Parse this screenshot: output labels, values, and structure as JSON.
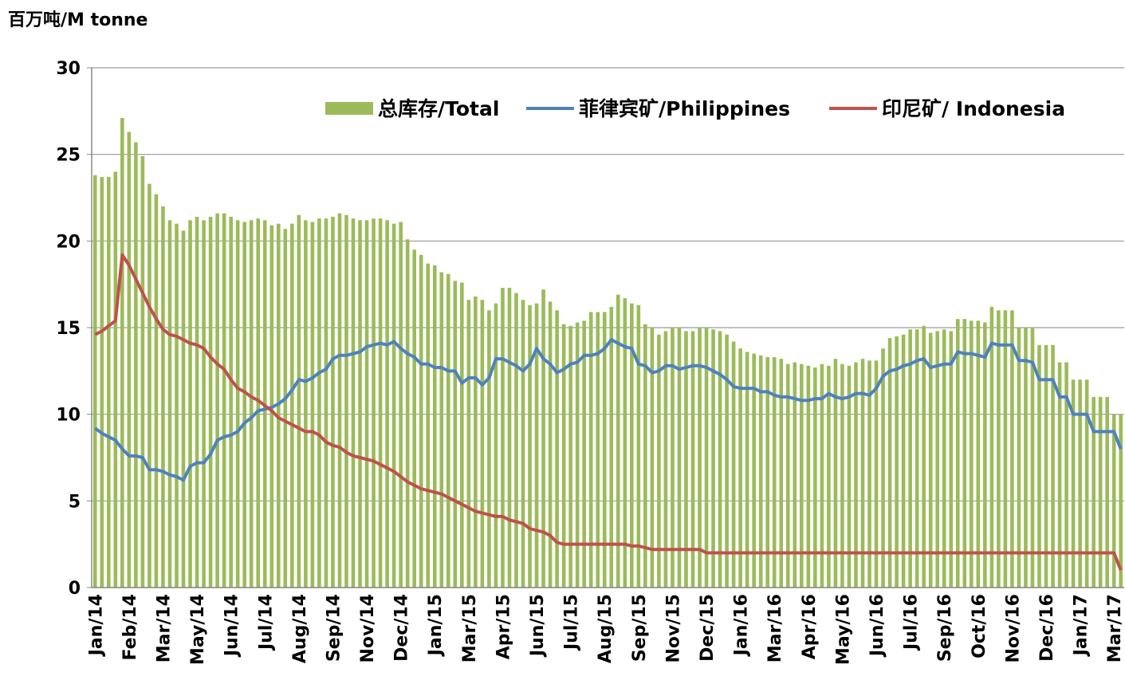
{
  "chart_data": {
    "type": "bar_line",
    "y_label": "百万吨/M tonne",
    "categories": [
      "Jan/14",
      null,
      null,
      null,
      null,
      "Feb/14",
      null,
      null,
      null,
      null,
      "Mar/14",
      null,
      null,
      null,
      null,
      "May/14",
      null,
      null,
      null,
      null,
      "Jun/14",
      null,
      null,
      null,
      null,
      "Jul/14",
      null,
      null,
      null,
      null,
      "Aug/14",
      null,
      null,
      null,
      null,
      "Sep/14",
      null,
      null,
      null,
      null,
      "Nov/14",
      null,
      null,
      null,
      null,
      "Dec/14",
      null,
      null,
      null,
      null,
      "Jan/15",
      null,
      null,
      null,
      null,
      "Mar/15",
      null,
      null,
      null,
      null,
      "Apr/15",
      null,
      null,
      null,
      null,
      "Jun/15",
      null,
      null,
      null,
      null,
      "Jul/15",
      null,
      null,
      null,
      null,
      "Aug/15",
      null,
      null,
      null,
      null,
      "Sep/15",
      null,
      null,
      null,
      null,
      "Nov/15",
      null,
      null,
      null,
      null,
      "Dec/15",
      null,
      null,
      null,
      null,
      "Jan/16",
      null,
      null,
      null,
      null,
      "Mar/16",
      null,
      null,
      null,
      null,
      "Apr/16",
      null,
      null,
      null,
      null,
      "May/16",
      null,
      null,
      null,
      null,
      "Jun/16",
      null,
      null,
      null,
      null,
      "Jul/16",
      null,
      null,
      null,
      null,
      "Sep/16",
      null,
      null,
      null,
      null,
      "Oct/16",
      null,
      null,
      null,
      null,
      "Nov/16",
      null,
      null,
      null,
      null,
      "Dec/16",
      null,
      null,
      null,
      null,
      "Jan/17",
      null,
      null,
      null,
      null,
      "Mar/17",
      null
    ],
    "series": [
      {
        "name": "总库存/Total",
        "kind": "bar",
        "color": "#9bbb59",
        "values": [
          23.8,
          23.7,
          23.7,
          24.0,
          27.1,
          26.3,
          25.7,
          24.9,
          23.3,
          22.7,
          22.0,
          21.2,
          21.0,
          20.6,
          21.2,
          21.4,
          21.2,
          21.4,
          21.6,
          21.6,
          21.4,
          21.2,
          21.1,
          21.2,
          21.3,
          21.2,
          20.9,
          21.0,
          20.7,
          21.0,
          21.5,
          21.2,
          21.1,
          21.3,
          21.3,
          21.4,
          21.6,
          21.5,
          21.3,
          21.2,
          21.2,
          21.3,
          21.3,
          21.2,
          21.0,
          21.1,
          20.1,
          19.5,
          19.2,
          18.7,
          18.6,
          18.2,
          18.1,
          17.7,
          17.6,
          16.6,
          16.8,
          16.6,
          16.0,
          16.4,
          17.3,
          17.3,
          17.0,
          16.6,
          16.3,
          16.4,
          17.2,
          16.5,
          16.0,
          15.2,
          15.1,
          15.3,
          15.4,
          15.9,
          15.9,
          15.9,
          16.2,
          16.9,
          16.7,
          16.4,
          16.3,
          15.2,
          15.0,
          14.6,
          14.8,
          15.0,
          15.0,
          14.8,
          14.8,
          15.0,
          15.0,
          14.9,
          14.8,
          14.6,
          14.2,
          13.8,
          13.6,
          13.5,
          13.4,
          13.3,
          13.3,
          13.2,
          12.9,
          13.0,
          12.9,
          12.8,
          12.7,
          12.9,
          12.8,
          13.2,
          12.9,
          12.8,
          13.0,
          13.2,
          13.1,
          13.1,
          13.8,
          14.4,
          14.5,
          14.6,
          14.9,
          14.9,
          15.1,
          14.7,
          14.8,
          14.9,
          14.8,
          15.5,
          15.5,
          15.4,
          15.4,
          15.3,
          16.2,
          16.0,
          16.0,
          16.0,
          15.0,
          15.0,
          15.0,
          14.0,
          14.0,
          14.0,
          13.0,
          13.0,
          12.0,
          12.0,
          12.0,
          11.0,
          11.0,
          11.0,
          10.0,
          10.0
        ]
      },
      {
        "name": "菲律宾矿/Philippines",
        "kind": "line",
        "color": "#4f81bd",
        "values": [
          9.2,
          8.9,
          8.7,
          8.5,
          8.0,
          7.6,
          7.6,
          7.5,
          6.8,
          6.8,
          6.7,
          6.5,
          6.4,
          6.2,
          7.0,
          7.2,
          7.2,
          7.7,
          8.5,
          8.7,
          8.8,
          9.0,
          9.5,
          9.8,
          10.2,
          10.3,
          10.4,
          10.6,
          10.9,
          11.4,
          12.0,
          11.9,
          12.1,
          12.4,
          12.6,
          13.2,
          13.4,
          13.4,
          13.5,
          13.6,
          13.9,
          14.0,
          14.1,
          14.0,
          14.2,
          13.8,
          13.5,
          13.3,
          12.9,
          12.9,
          12.7,
          12.7,
          12.5,
          12.5,
          11.8,
          12.1,
          12.1,
          11.7,
          12.1,
          13.2,
          13.2,
          13.0,
          12.8,
          12.5,
          12.9,
          13.8,
          13.2,
          12.9,
          12.4,
          12.6,
          12.9,
          13.0,
          13.4,
          13.4,
          13.5,
          13.8,
          14.3,
          14.1,
          13.9,
          13.8,
          12.9,
          12.8,
          12.4,
          12.5,
          12.8,
          12.8,
          12.6,
          12.7,
          12.8,
          12.8,
          12.7,
          12.5,
          12.3,
          12.0,
          11.6,
          11.5,
          11.5,
          11.5,
          11.3,
          11.3,
          11.1,
          11.0,
          11.0,
          10.9,
          10.8,
          10.8,
          10.9,
          10.9,
          11.2,
          11.0,
          10.9,
          11.0,
          11.2,
          11.2,
          11.1,
          11.5,
          12.2,
          12.5,
          12.6,
          12.8,
          12.9,
          13.1,
          13.2,
          12.7,
          12.8,
          12.9,
          12.9,
          13.6,
          13.5,
          13.5,
          13.4,
          13.3,
          14.1,
          14.0,
          14.0,
          14.0,
          13.1,
          13.1,
          13.0,
          12.0,
          12.0,
          12.0,
          11.0,
          11.0,
          10.0,
          10.0,
          10.0,
          9.0,
          9.0,
          9.0,
          9.0,
          8.0
        ]
      },
      {
        "name": "印尼矿/ Indonesia",
        "kind": "line",
        "color": "#c0504d",
        "values": [
          14.6,
          14.8,
          15.1,
          15.4,
          19.2,
          18.6,
          17.8,
          17.0,
          16.2,
          15.5,
          14.9,
          14.6,
          14.5,
          14.3,
          14.1,
          14.0,
          13.8,
          13.3,
          12.9,
          12.6,
          12.0,
          11.5,
          11.3,
          11.0,
          10.8,
          10.5,
          10.2,
          9.8,
          9.6,
          9.4,
          9.2,
          9.0,
          9.0,
          8.8,
          8.4,
          8.2,
          8.1,
          7.8,
          7.6,
          7.5,
          7.4,
          7.3,
          7.1,
          6.9,
          6.7,
          6.4,
          6.1,
          5.9,
          5.7,
          5.6,
          5.5,
          5.4,
          5.2,
          5.0,
          4.8,
          4.6,
          4.4,
          4.3,
          4.2,
          4.1,
          4.1,
          3.9,
          3.8,
          3.7,
          3.4,
          3.3,
          3.2,
          3.0,
          2.6,
          2.5,
          2.5,
          2.5,
          2.5,
          2.5,
          2.5,
          2.5,
          2.5,
          2.5,
          2.5,
          2.4,
          2.4,
          2.3,
          2.2,
          2.2,
          2.2,
          2.2,
          2.2,
          2.2,
          2.2,
          2.2,
          2.0,
          2.0,
          2.0,
          2.0,
          2.0,
          2.0,
          2.0,
          2.0,
          2.0,
          2.0,
          2.0,
          2.0,
          2.0,
          2.0,
          2.0,
          2.0,
          2.0,
          2.0,
          2.0,
          2.0,
          2.0,
          2.0,
          2.0,
          2.0,
          2.0,
          2.0,
          2.0,
          2.0,
          2.0,
          2.0,
          2.0,
          2.0,
          2.0,
          2.0,
          2.0,
          2.0,
          2.0,
          2.0,
          2.0,
          2.0,
          2.0,
          2.0,
          2.0,
          2.0,
          2.0,
          2.0,
          2.0,
          2.0,
          2.0,
          2.0,
          2.0,
          2.0,
          2.0,
          2.0,
          2.0,
          2.0,
          2.0,
          2.0,
          2.0,
          2.0,
          2.0,
          1.0
        ]
      }
    ],
    "ylim": [
      0,
      30
    ],
    "yticks": [
      0,
      5,
      10,
      15,
      20,
      25,
      30
    ],
    "grid": true,
    "legend": "top"
  }
}
